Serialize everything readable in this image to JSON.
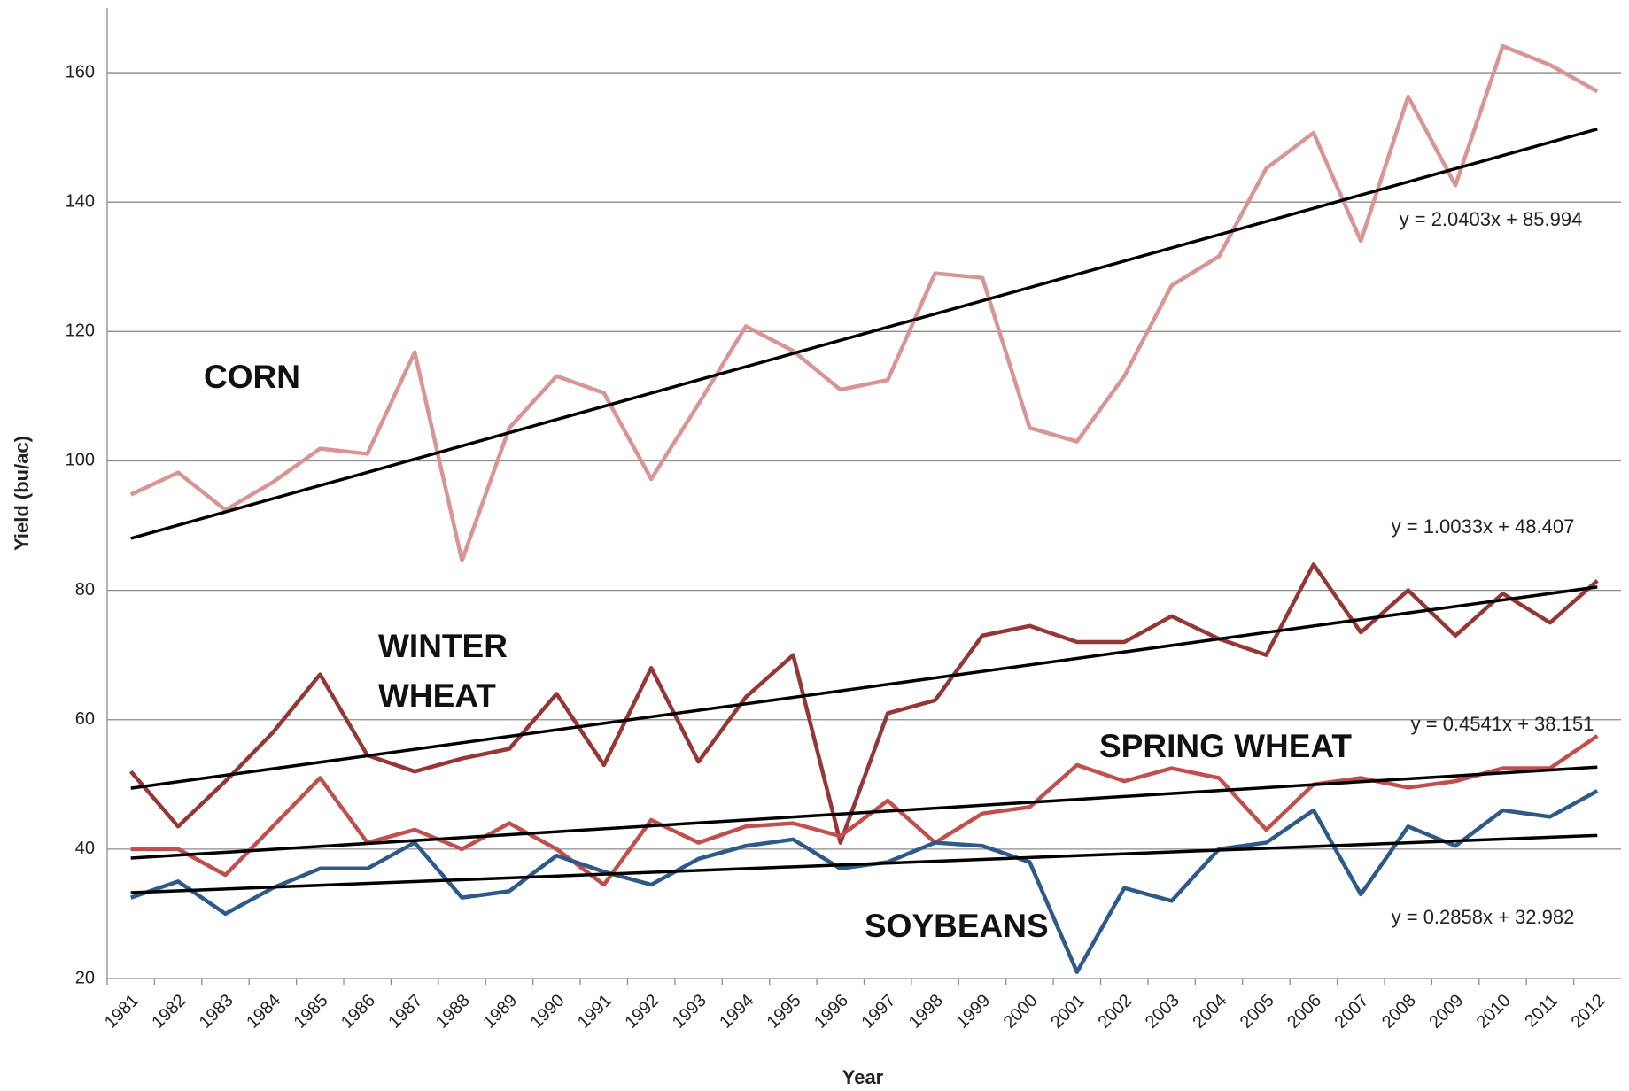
{
  "chart_data": {
    "type": "line",
    "x_label": "Year",
    "y_label": "Yield (bu/ac)",
    "categories": [
      "1981",
      "1982",
      "1983",
      "1984",
      "1985",
      "1986",
      "1987",
      "1988",
      "1989",
      "1990",
      "1991",
      "1992",
      "1993",
      "1994",
      "1995",
      "1996",
      "1997",
      "1998",
      "1999",
      "2000",
      "2001",
      "2002",
      "2003",
      "2004",
      "2005",
      "2006",
      "2007",
      "2008",
      "2009",
      "2010",
      "2011",
      "2012"
    ],
    "ylim": [
      20,
      170
    ],
    "yticks": [
      20,
      40,
      60,
      80,
      100,
      120,
      140,
      160
    ],
    "grid": true,
    "series": [
      {
        "name": "CORN",
        "color": "#d99594",
        "values": [
          94.8,
          98.2,
          92.4,
          96.7,
          101.9,
          101.1,
          116.8,
          84.6,
          105.1,
          113.1,
          110.5,
          97.2,
          108.8,
          120.8,
          117.0,
          111.0,
          112.5,
          129.0,
          128.3,
          105.1,
          103.0,
          113.1,
          127.1,
          131.6,
          145.2,
          150.7,
          134.0,
          156.3,
          142.6,
          164.1,
          161.2,
          157.1
        ]
      },
      {
        "name": "WINTER WHEAT",
        "color": "#953735",
        "values": [
          52,
          43.5,
          50.5,
          58,
          67,
          54.5,
          52,
          54,
          55.5,
          64,
          53,
          68,
          53.5,
          63.5,
          70,
          41,
          61,
          63,
          73,
          74.5,
          72,
          72,
          76,
          72.5,
          70,
          84,
          73.5,
          80,
          73,
          79.5,
          75,
          81.5
        ]
      },
      {
        "name": "SPRING WHEAT",
        "color": "#c0504d",
        "values": [
          40,
          40,
          36,
          43.5,
          51,
          41,
          43,
          40,
          44,
          40,
          34.5,
          44.5,
          41,
          43.5,
          44,
          42,
          47.5,
          41,
          45.5,
          46.5,
          53,
          50.5,
          52.5,
          51,
          43,
          50,
          51,
          49.5,
          50.5,
          52.5,
          52.5,
          57.5
        ]
      },
      {
        "name": "SOYBEANS",
        "color": "#2e5a8a",
        "values": [
          32.5,
          35,
          30,
          34,
          37,
          37,
          41,
          32.5,
          33.5,
          39,
          36.5,
          34.5,
          38.5,
          40.5,
          41.5,
          37,
          38,
          41,
          40.5,
          38,
          21,
          34,
          32,
          40,
          41,
          46,
          33,
          43.5,
          40.5,
          46,
          45,
          49
        ]
      }
    ],
    "trendlines": [
      {
        "label": "y = 2.0403x + 85.994",
        "slope": 2.0403,
        "intercept": 85.994,
        "color": "#000000"
      },
      {
        "label": "y = 1.0033x + 48.407",
        "slope": 1.0033,
        "intercept": 48.407,
        "color": "#000000"
      },
      {
        "label": "y = 0.4541x + 38.151",
        "slope": 0.4541,
        "intercept": 38.151,
        "color": "#000000"
      },
      {
        "label": "y = 0.2858x + 32.982",
        "slope": 0.2858,
        "intercept": 32.982,
        "color": "#000000"
      }
    ]
  }
}
